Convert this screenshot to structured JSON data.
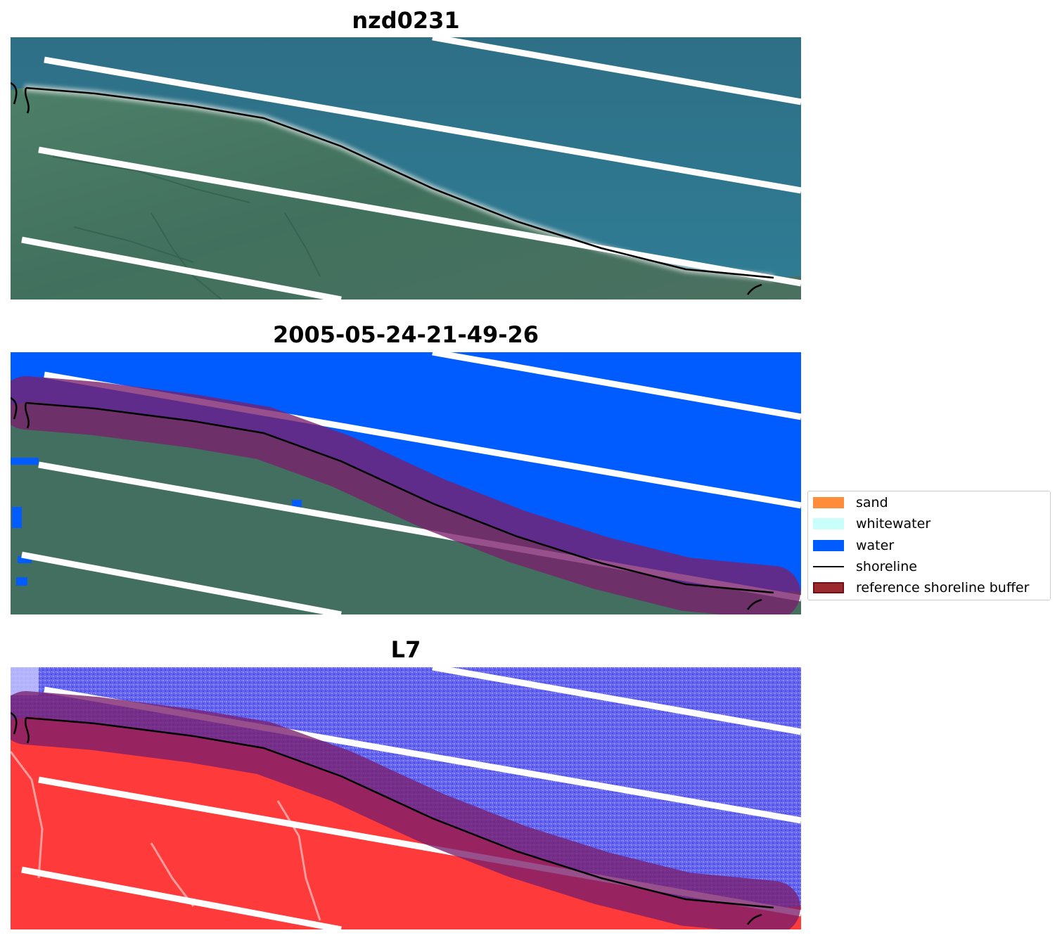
{
  "panels": [
    {
      "title": "nzd0231",
      "layer": "rgb-image"
    },
    {
      "title": "2005-05-24-21-49-26",
      "layer": "classified-image"
    },
    {
      "title": "L7",
      "layer": "mndwi-image"
    }
  ],
  "legend": {
    "items": [
      {
        "label": "sand",
        "kind": "patch",
        "color": "#ff8c3a"
      },
      {
        "label": "whitewater",
        "kind": "patch",
        "color": "#c8fffb"
      },
      {
        "label": "water",
        "kind": "patch",
        "color": "#005cff"
      },
      {
        "label": "shoreline",
        "kind": "line",
        "color": "#000000"
      },
      {
        "label": "reference shoreline buffer",
        "kind": "patch",
        "color": "#9b2a2f",
        "edge": "#6e1018"
      }
    ]
  },
  "colors": {
    "ocean": "#2f7b93",
    "land": "#3f6e5c",
    "water_class": "#005cff",
    "buffer": "#7a1f6b",
    "mndwi_water": "#6060f0",
    "mndwi_land": "#ff3a3a"
  }
}
